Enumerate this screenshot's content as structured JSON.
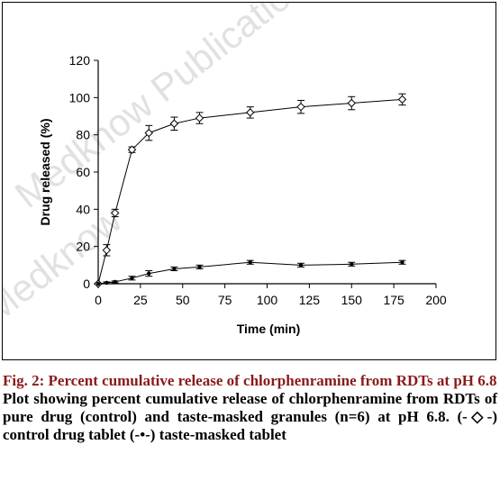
{
  "chart_data": {
    "type": "line",
    "xlabel": "Time (min)",
    "ylabel": "Drug released (%)",
    "xlim": [
      0,
      200
    ],
    "ylim": [
      0,
      120
    ],
    "xticks": [
      "0",
      "25",
      "50",
      "75",
      "100",
      "125",
      "150",
      "175",
      "200"
    ],
    "yticks": [
      "0",
      "20",
      "40",
      "60",
      "80",
      "100",
      "120"
    ],
    "grid": false,
    "legend": "none",
    "series": [
      {
        "marker": "diamond-open",
        "x": [
          0,
          5,
          10,
          20,
          30,
          45,
          60,
          90,
          120,
          150,
          180
        ],
        "y": [
          0,
          18,
          38,
          72,
          81,
          86,
          89,
          92,
          95,
          97,
          99
        ],
        "err": [
          0,
          3,
          2,
          1.5,
          4,
          3.5,
          3,
          3,
          3.5,
          3.5,
          3
        ]
      },
      {
        "marker": "filled-circle",
        "x": [
          0,
          5,
          10,
          20,
          30,
          45,
          60,
          90,
          120,
          150,
          180
        ],
        "y": [
          0,
          0.5,
          1,
          3,
          5.5,
          8,
          9,
          11.5,
          10,
          10.5,
          11.5
        ],
        "err": [
          0,
          0.5,
          0.5,
          1,
          1.5,
          1,
          1,
          1,
          1,
          1,
          1
        ]
      }
    ]
  },
  "watermark": {
    "text1": "Medknow Publications",
    "text2": "Medknow"
  },
  "caption": {
    "title": "Fig. 2: Percent cumulative release of chlorphenramine from RDTs at pH 6.8",
    "body": "Plot showing percent cumulative release of chlorphenramine from RDTs of pure drug (control) and taste-masked granules (n=6) at pH 6.8. (-◇-) control drug tablet (-•-) taste-masked tablet"
  }
}
